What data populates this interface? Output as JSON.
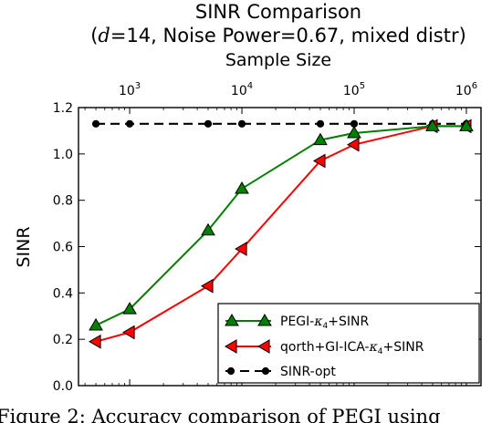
{
  "chart_data": {
    "type": "line",
    "title": "SINR Comparison",
    "subtitle": "(d=14, Noise Power=0.67, mixed distr)",
    "subtitle_parts": {
      "open": "(",
      "var": "d",
      "rest": "=14, Noise Power=0.67, mixed distr)"
    },
    "xlabel": "Sample Size",
    "ylabel": "SINR",
    "x_scale": "log",
    "xlim": [
      350,
      1350000
    ],
    "ylim": [
      0.0,
      1.2
    ],
    "x_ticks": [
      {
        "value": 1000,
        "mant": "10",
        "exp": "3"
      },
      {
        "value": 10000,
        "mant": "10",
        "exp": "4"
      },
      {
        "value": 100000,
        "mant": "10",
        "exp": "5"
      },
      {
        "value": 1000000,
        "mant": "10",
        "exp": "6"
      }
    ],
    "y_ticks": [
      {
        "value": 0.0,
        "label": "0.0"
      },
      {
        "value": 0.2,
        "label": "0.2"
      },
      {
        "value": 0.4,
        "label": "0.4"
      },
      {
        "value": 0.6,
        "label": "0.6"
      },
      {
        "value": 0.8,
        "label": "0.8"
      },
      {
        "value": 1.0,
        "label": "1.0"
      },
      {
        "value": 1.2,
        "label": "1.2"
      }
    ],
    "grid": false,
    "legend_position": "lower-right",
    "series": [
      {
        "name": "PEGI-κ4+SINR",
        "name_parts": {
          "pre": "PEGI-",
          "kappa": "κ",
          "sub": "4",
          "post": "+SINR"
        },
        "color": "#008000",
        "marker": "triangle-up",
        "linestyle": "solid",
        "x": [
          500,
          1000,
          5000,
          10000,
          50000,
          100000,
          500000,
          1000000
        ],
        "y": [
          0.26,
          0.33,
          0.67,
          0.85,
          1.06,
          1.09,
          1.12,
          1.12
        ]
      },
      {
        "name": "qorth+GI-ICA-κ4+SINR",
        "name_parts": {
          "pre": "qorth+GI-ICA-",
          "kappa": "κ",
          "sub": "4",
          "post": "+SINR"
        },
        "color": "#ff0000",
        "marker": "triangle-left",
        "linestyle": "solid",
        "x": [
          500,
          1000,
          5000,
          10000,
          50000,
          100000,
          500000,
          1000000
        ],
        "y": [
          0.19,
          0.23,
          0.43,
          0.59,
          0.97,
          1.04,
          1.12,
          1.12
        ]
      },
      {
        "name": "SINR-opt",
        "name_parts": {
          "pre": "SINR-opt",
          "kappa": "",
          "sub": "",
          "post": ""
        },
        "color": "#000000",
        "marker": "circle",
        "linestyle": "dashed",
        "x": [
          500,
          1000,
          5000,
          10000,
          50000,
          100000,
          500000,
          1000000
        ],
        "y": [
          1.13,
          1.13,
          1.13,
          1.13,
          1.13,
          1.13,
          1.13,
          1.13
        ]
      }
    ]
  },
  "caption": "Figure 2:  Accuracy comparison of PEGI using"
}
